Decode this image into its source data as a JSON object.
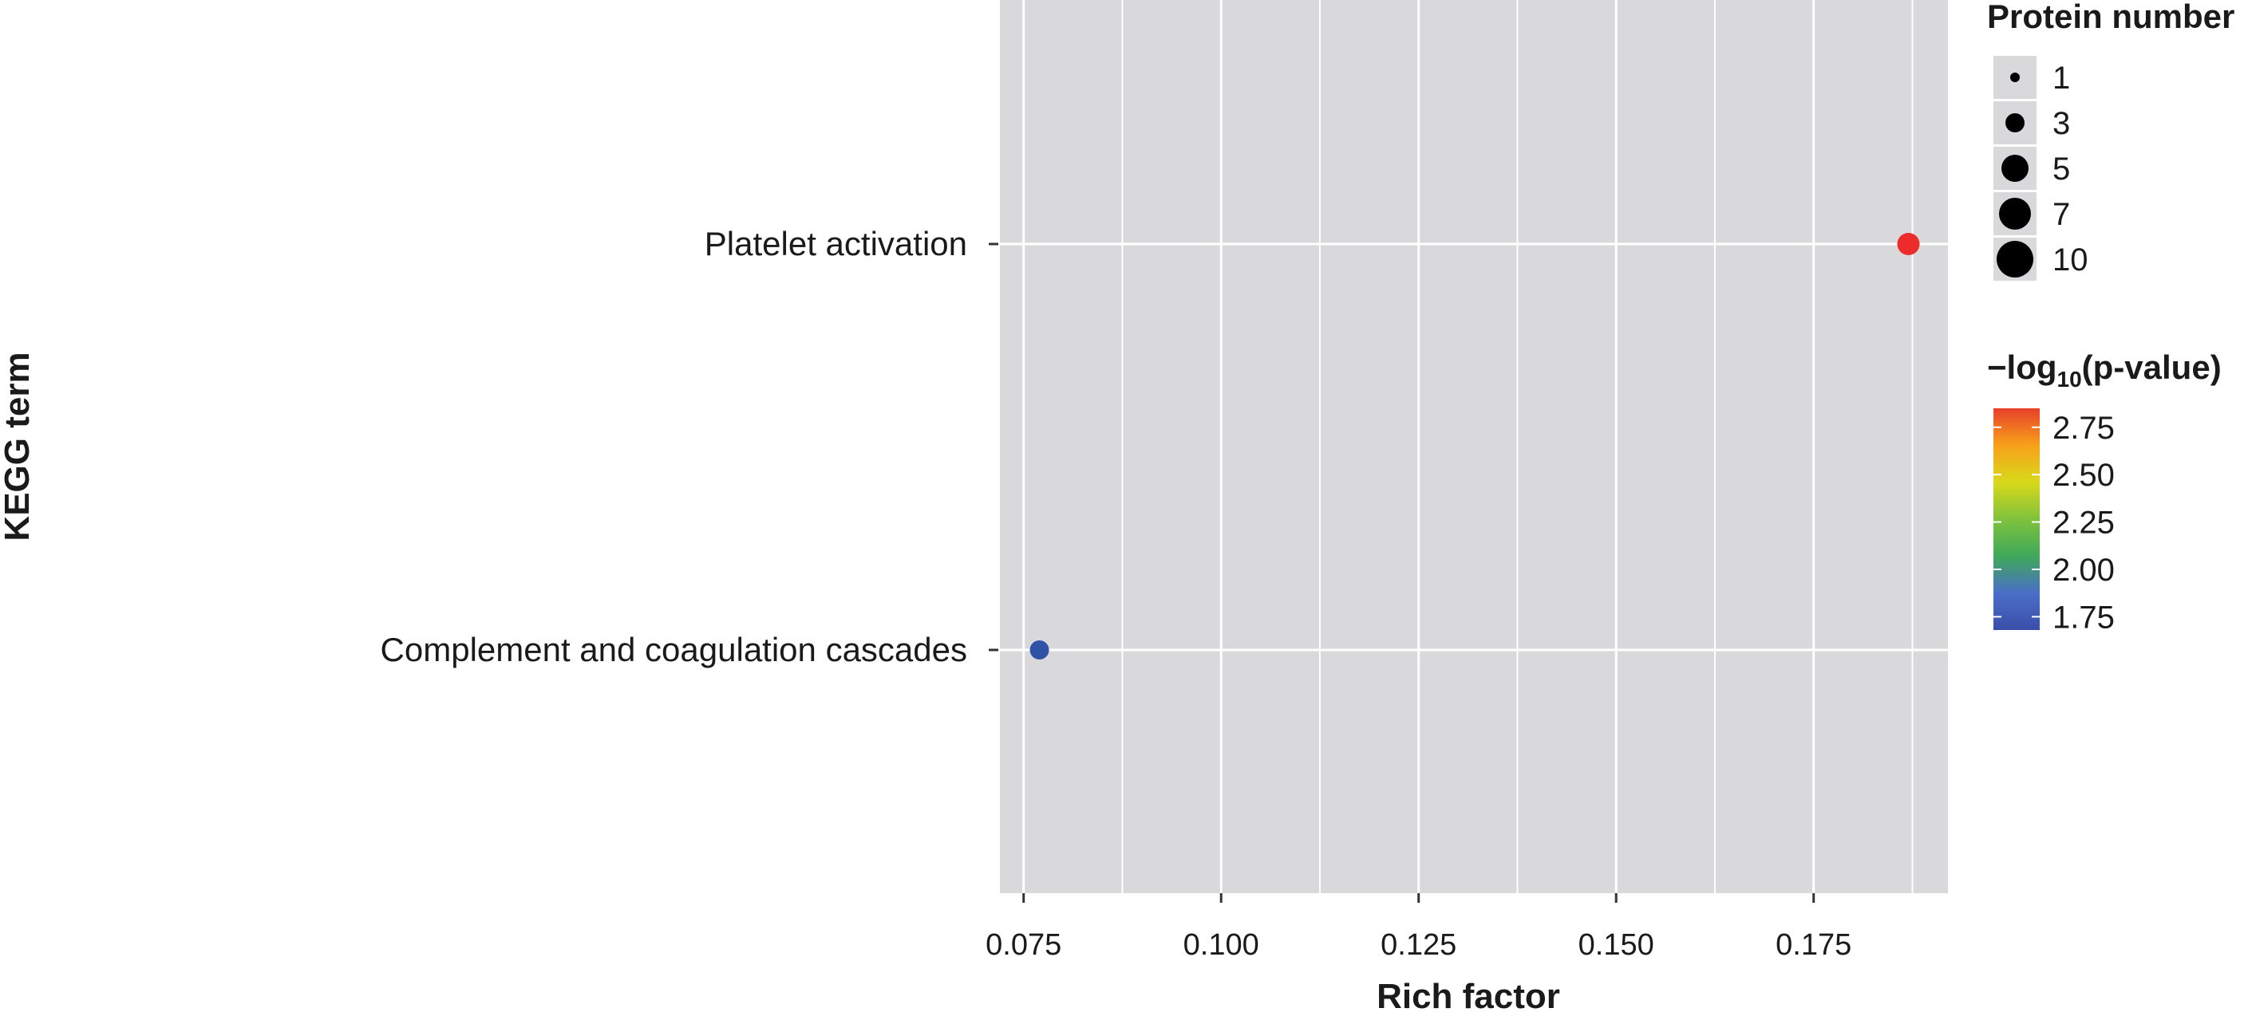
{
  "chart_data": {
    "type": "scatter",
    "xlabel": "Rich factor",
    "ylabel": "KEGG term",
    "xlim": [
      0.072,
      0.192
    ],
    "x_ticks": [
      "0.075",
      "0.100",
      "0.125",
      "0.150",
      "0.175"
    ],
    "x_tick_values": [
      0.075,
      0.1,
      0.125,
      0.15,
      0.175
    ],
    "categories": [
      "Complement and coagulation cascades",
      "Platelet activation"
    ],
    "points": [
      {
        "category": "Platelet activation",
        "x": 0.187,
        "size": 3,
        "color_value": 2.82,
        "color": "#ee2b2b"
      },
      {
        "category": "Complement and coagulation cascades",
        "x": 0.077,
        "size": 2,
        "color_value": 1.7,
        "color": "#2f52a6"
      }
    ],
    "grid": true,
    "panel_background": "#d9d9db",
    "grid_color": "#ffffff",
    "size_legend": {
      "title": "Protein number",
      "entries": [
        "1",
        "3",
        "5",
        "7",
        "10"
      ],
      "values": [
        1,
        3,
        5,
        7,
        10
      ],
      "placement": "right"
    },
    "color_legend": {
      "title_prefix": "−log",
      "title_sub": "10",
      "title_suffix": "(p-value)",
      "ticks": [
        "2.75",
        "2.50",
        "2.25",
        "2.00",
        "1.75"
      ],
      "tick_values": [
        2.75,
        2.5,
        2.25,
        2.0,
        1.75
      ],
      "range": [
        1.68,
        2.85
      ],
      "gradient": [
        "#e8402b",
        "#f7a11a",
        "#d9d91a",
        "#7fc23c",
        "#3fa85a",
        "#4a6fc8",
        "#3a4ea8"
      ],
      "placement": "right"
    }
  }
}
